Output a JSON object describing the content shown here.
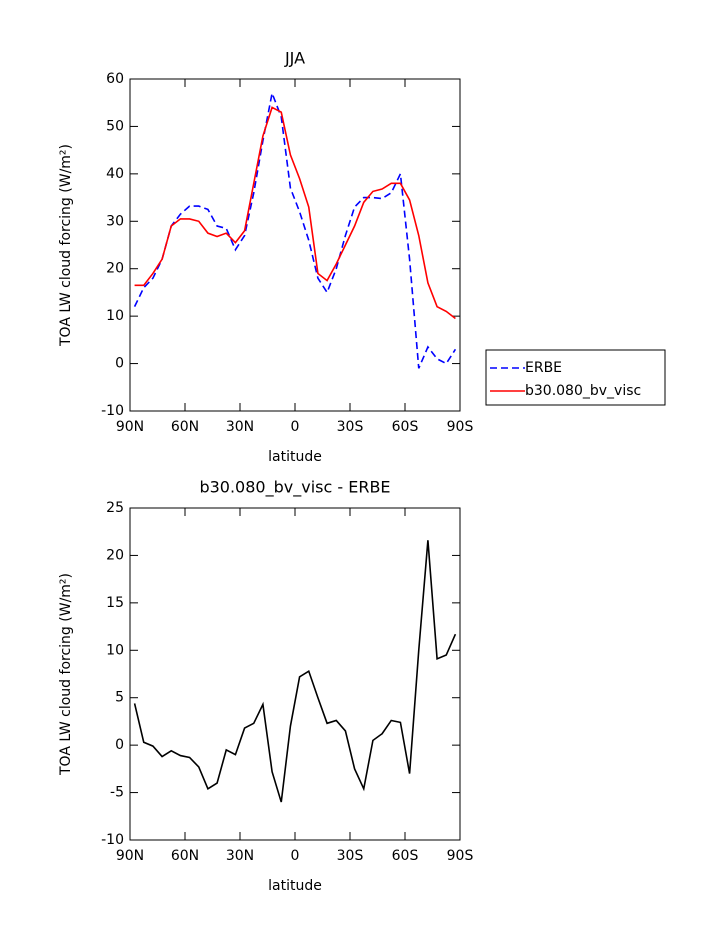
{
  "chart_data": [
    {
      "type": "line",
      "title": "JJA",
      "xlabel": "latitude",
      "ylabel": "TOA LW cloud forcing (W/m²)",
      "x": [
        87.5,
        82.5,
        77.5,
        72.5,
        67.5,
        62.5,
        57.5,
        52.5,
        47.5,
        42.5,
        37.5,
        32.5,
        27.5,
        22.5,
        17.5,
        12.5,
        7.5,
        2.5,
        -2.5,
        -7.5,
        -12.5,
        -17.5,
        -22.5,
        -27.5,
        -32.5,
        -37.5,
        -42.5,
        -47.5,
        -52.5,
        -57.5,
        -62.5,
        -67.5,
        -72.5,
        -77.5,
        -82.5,
        -87.5
      ],
      "series": [
        {
          "name": "ERBE",
          "color": "#0000ff",
          "style": "dashed",
          "values": [
            12,
            16,
            18,
            22,
            29,
            31.5,
            33.2,
            33.2,
            32.5,
            29,
            28.5,
            24,
            27,
            36,
            47,
            57,
            52,
            37,
            32,
            26,
            18,
            15,
            20,
            27,
            33,
            35,
            35,
            34.8,
            36,
            40,
            22,
            -1,
            3.5,
            1,
            0,
            3
          ]
        },
        {
          "name": "b30.080_bv_visc",
          "color": "#ff0000",
          "style": "solid",
          "values": [
            16.5,
            16.5,
            19,
            22,
            29,
            30.5,
            30.5,
            30,
            27.5,
            26.8,
            27.5,
            25.5,
            28,
            38,
            48,
            54,
            53,
            44,
            39,
            33,
            19,
            17.5,
            21,
            25,
            29,
            34,
            36.3,
            36.8,
            38,
            38,
            34.5,
            27,
            17,
            12,
            11,
            9.5
          ]
        }
      ],
      "xlim": [
        90,
        -90
      ],
      "xticks": [
        {
          "value": 90,
          "label": "90N"
        },
        {
          "value": 60,
          "label": "60N"
        },
        {
          "value": 30,
          "label": "30N"
        },
        0,
        {
          "value": -30,
          "label": "30S"
        },
        {
          "value": -60,
          "label": "60S"
        },
        {
          "value": -90,
          "label": "90S"
        }
      ],
      "ylim": [
        -10,
        60
      ],
      "yticks": [
        -10,
        0,
        10,
        20,
        30,
        40,
        50,
        60
      ],
      "grid": false,
      "legend": "right"
    },
    {
      "type": "line",
      "title": "b30.080_bv_visc - ERBE",
      "xlabel": "latitude",
      "ylabel": "TOA LW cloud forcing (W/m²)",
      "x": [
        87.5,
        82.5,
        77.5,
        72.5,
        67.5,
        62.5,
        57.5,
        52.5,
        47.5,
        42.5,
        37.5,
        32.5,
        27.5,
        22.5,
        17.5,
        12.5,
        7.5,
        2.5,
        -2.5,
        -7.5,
        -12.5,
        -17.5,
        -22.5,
        -27.5,
        -32.5,
        -37.5,
        -42.5,
        -47.5,
        -52.5,
        -57.5,
        -62.5,
        -67.5,
        -72.5,
        -77.5,
        -82.5,
        -87.5
      ],
      "series": [
        {
          "color": "#000000",
          "style": "solid",
          "values": [
            4.4,
            0.3,
            -0.1,
            -1.2,
            -0.6,
            -1.1,
            -1.3,
            -2.3,
            -4.6,
            -4,
            -0.5,
            -1,
            1.8,
            2.3,
            4.3,
            -2.8,
            -6,
            2,
            7.2,
            7.8,
            5,
            2.3,
            2.6,
            1.5,
            -2.5,
            -4.6,
            0.5,
            1.2,
            2.6,
            2.4,
            -3,
            10,
            21.6,
            9.1,
            9.5,
            11.7
          ]
        }
      ],
      "xlim": [
        90,
        -90
      ],
      "xticks": [
        {
          "value": 90,
          "label": "90N"
        },
        {
          "value": 60,
          "label": "60N"
        },
        {
          "value": 30,
          "label": "30N"
        },
        0,
        {
          "value": -30,
          "label": "30S"
        },
        {
          "value": -60,
          "label": "60S"
        },
        {
          "value": -90,
          "label": "90S"
        }
      ],
      "ylim": [
        -10,
        25
      ],
      "yticks": [
        -10,
        -5,
        0,
        5,
        10,
        15,
        20,
        25
      ],
      "grid": false
    }
  ]
}
